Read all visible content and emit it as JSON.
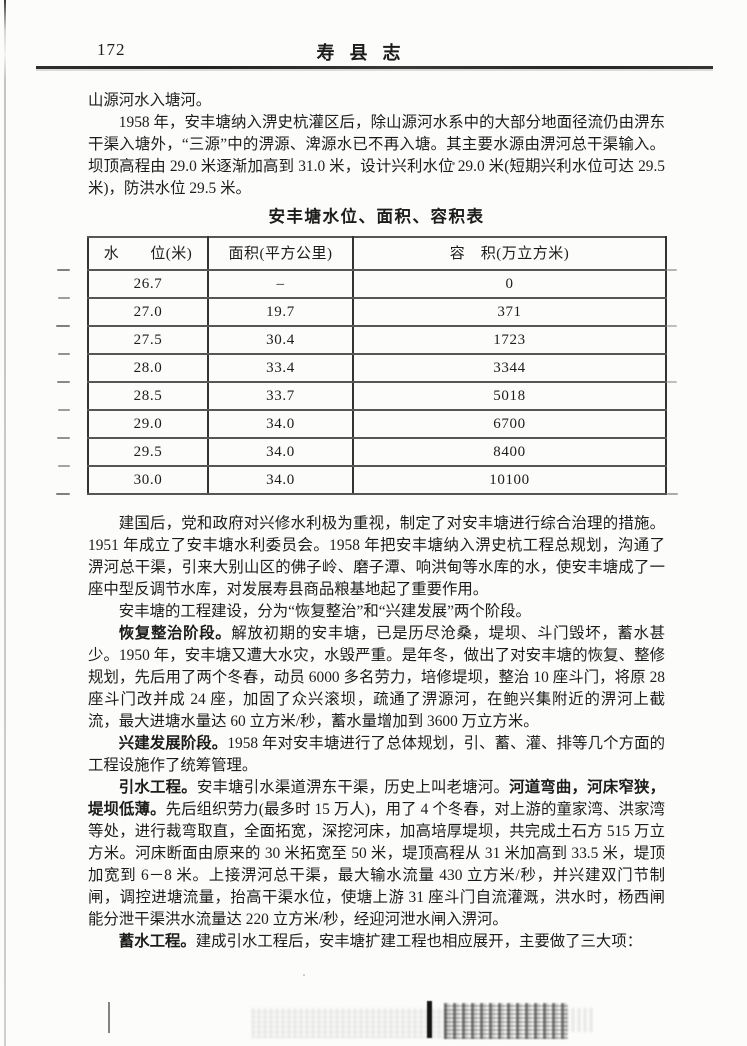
{
  "header": {
    "page_number": "172",
    "book_title": "寿县志"
  },
  "table": {
    "title": "安丰塘水位、面积、容积表",
    "headers": [
      "水　　位(米)",
      "面积(平方公里)",
      "容　积(万立方米)"
    ],
    "rows": [
      [
        "26.7",
        "–",
        "0"
      ],
      [
        "27.0",
        "19.7",
        "371"
      ],
      [
        "27.5",
        "30.4",
        "1723"
      ],
      [
        "28.0",
        "33.4",
        "3344"
      ],
      [
        "28.5",
        "33.7",
        "5018"
      ],
      [
        "29.0",
        "34.0",
        "6700"
      ],
      [
        "29.5",
        "34.0",
        "8400"
      ],
      [
        "30.0",
        "34.0",
        "10100"
      ]
    ]
  },
  "paragraphs_top": [
    {
      "indent": false,
      "segments": [
        {
          "text": "山源河水入塘河。",
          "bold": false
        }
      ]
    },
    {
      "indent": true,
      "segments": [
        {
          "text": "1958 年，安丰塘纳入淠史杭灌区后，除山源河水系中的大部分地面径流仍由淠东干渠入塘外，“三源”中的淠源、渒源水已不再入塘。其主要水源由淠河总干渠输入。坝顶高程由 29.0 米逐渐加高到 31.0 米，设计兴利水位 29.0 米(短期兴利水位可达 29.5 米)，防洪水位 29.5 米。",
          "bold": false
        }
      ]
    }
  ],
  "paragraphs_bottom": [
    {
      "indent": true,
      "segments": [
        {
          "text": "建国后，党和政府对兴修水利极为重视，制定了对安丰塘进行综合治理的措施。1951 年成立了安丰塘水利委员会。1958 年把安丰塘纳入淠史杭工程总规划，沟通了淠河总干渠，引来大别山区的佛子岭、磨子潭、响洪甸等水库的水，使安丰塘成了一座中型反调节水库，对发展寿县商品粮基地起了重要作用。",
          "bold": false
        }
      ]
    },
    {
      "indent": true,
      "segments": [
        {
          "text": "安丰塘的工程建设，分为“恢复整治”和“兴建发展”两个阶段。",
          "bold": false
        }
      ]
    },
    {
      "indent": true,
      "segments": [
        {
          "text": "恢复整治阶段。",
          "bold": true
        },
        {
          "text": "解放初期的安丰塘，已是历尽沧桑，堤坝、斗门毁坏，蓄水甚少。1950 年，安丰塘又遭大水灾，水毁严重。是年冬，做出了对安丰塘的恢复、整修规划，先后用了两个冬春，动员 6000 多名劳力，培修堤坝，整治 10 座斗门，将原 28 座斗门改并成 24 座，加固了众兴滚坝，疏通了淠源河，在鲍兴集附近的淠河上截流，最大进塘水量达 60 立方米/秒，蓄水量增加到 3600 万立方米。",
          "bold": false
        }
      ]
    },
    {
      "indent": true,
      "segments": [
        {
          "text": "兴建发展阶段。",
          "bold": true
        },
        {
          "text": "1958 年对安丰塘进行了总体规划，引、蓄、灌、排等几个方面的工程设施作了统筹管理。",
          "bold": false
        }
      ]
    },
    {
      "indent": true,
      "segments": [
        {
          "text": "引水工程。",
          "bold": true
        },
        {
          "text": "安丰塘引水渠道淠东干渠，历史上叫老塘河。",
          "bold": false
        },
        {
          "text": "河道弯曲，河床窄狭，堤坝低薄。",
          "bold": true
        },
        {
          "text": "先后组织劳力(最多时 15 万人)，用了 4 个冬春，对上游的童家湾、洪家湾等处，进行裁弯取直，全面拓宽，深挖河床，加高培厚堤坝，共完成土石方 515 万立方米。河床断面由原来的 30 米拓宽至 50 米，堤顶高程从 31 米加高到 33.5 米，堤顶加宽到 6－8 米。上接淠河总干渠，最大输水流量 430 立方米/秒，并兴建双门节制闸，调控进塘流量，抬高干渠水位，使塘上游 31 座斗门自流灌溉，洪水时，杨西闸能分泄干渠洪水流量达 220 立方米/秒，经迎河泄水闸入淠河。",
          "bold": false
        }
      ]
    },
    {
      "indent": true,
      "segments": [
        {
          "text": "蓄水工程。",
          "bold": true
        },
        {
          "text": "建成引水工程后，安丰塘扩建工程也相应展开，主要做了三大项：",
          "bold": false
        }
      ]
    }
  ]
}
